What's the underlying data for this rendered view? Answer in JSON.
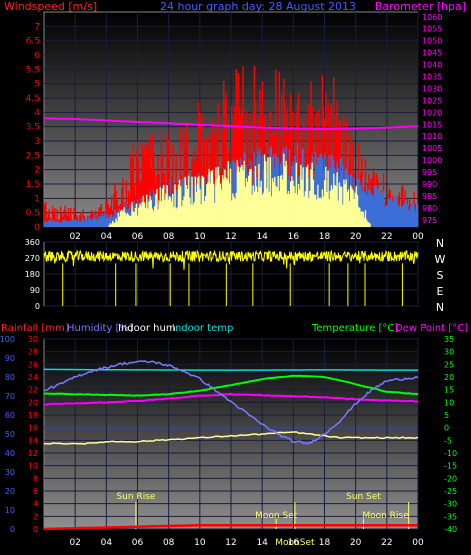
{
  "colors": {
    "wind": "#ff0000",
    "gust": "#ff0000",
    "windavg": "#3a6fd8",
    "baro": "#ff00ff",
    "dir": "#ffff00",
    "rain": "#ff0000",
    "humidity": "#7a7aff",
    "indoor_hum": "#ffff99",
    "indoor_temp": "#00e0e0",
    "temperature": "#00ff00",
    "dewpoint": "#ff00ff",
    "sun": "#ffff66",
    "axis_temp": "#00ff00",
    "axis_baro": "#ff00ff",
    "axis_wind": "#ff0000",
    "axis_left": "#4060ff",
    "axis_rain": "#ff0000",
    "axis_dir": "#ffffff"
  },
  "chart_data": [
    {
      "type": "bar",
      "panel": "wind_barometer",
      "title": "24 hour graph day: 28 August 2013",
      "left_axis_label": "Windspeed [m/s]",
      "right_axis_label": "Barometer [hpa]",
      "y_left_ticks": [
        "0",
        "0.5",
        "1",
        "1.5",
        "2",
        "2.5",
        "3",
        "3.5",
        "4",
        "4.5",
        "5",
        "5.5",
        "6",
        "6.5",
        "7"
      ],
      "y_right_ticks": [
        "975",
        "980",
        "985",
        "990",
        "995",
        "1000",
        "1005",
        "1010",
        "1015",
        "1020",
        "1025",
        "1030",
        "1035",
        "1040",
        "1045",
        "1050",
        "1055",
        "1060"
      ],
      "x_ticks": [
        "02",
        "04",
        "06",
        "08",
        "10",
        "12",
        "14",
        "16",
        "18",
        "20",
        "22",
        "00"
      ],
      "ylim_left": [
        0,
        7.5
      ],
      "ylim_right": [
        972,
        1062
      ],
      "hour_range": [
        0,
        24
      ],
      "gust_profile": {
        "hour": [
          0,
          1,
          2,
          3,
          4,
          5,
          6,
          7,
          8,
          9,
          10,
          11,
          12,
          13,
          14,
          15,
          16,
          17,
          18,
          19,
          20,
          21,
          22,
          23,
          24
        ],
        "value": [
          0.8,
          0.6,
          0.5,
          0.5,
          0.8,
          1.5,
          2.5,
          2.6,
          2.8,
          3.0,
          3.4,
          3.6,
          4.2,
          5.2,
          4.8,
          4.5,
          4.2,
          4.0,
          4.6,
          3.6,
          2.6,
          1.6,
          1.4,
          1.2,
          1.2
        ]
      },
      "avg_profile": {
        "hour": [
          0,
          2,
          4,
          6,
          8,
          10,
          12,
          14,
          16,
          18,
          20,
          22,
          24
        ],
        "value": [
          0.2,
          0.2,
          0.4,
          0.8,
          1.3,
          1.5,
          1.9,
          2.2,
          2.3,
          2.1,
          1.6,
          0.9,
          0.7
        ]
      },
      "base_profile": {
        "hour": [
          0,
          4,
          5,
          6,
          8,
          10,
          12,
          14,
          16,
          18,
          20,
          21,
          22,
          24
        ],
        "value": [
          0,
          0,
          0.5,
          0.8,
          1.2,
          1.5,
          1.8,
          2.0,
          2.0,
          1.7,
          1.2,
          0,
          0,
          0
        ]
      },
      "barometer": {
        "hour": [
          0,
          2,
          4,
          6,
          8,
          10,
          12,
          14,
          16,
          18,
          20,
          22,
          24
        ],
        "value": [
          1017.5,
          1017.2,
          1016.6,
          1016.0,
          1015.4,
          1014.8,
          1014.2,
          1013.6,
          1013.2,
          1013.0,
          1013.2,
          1013.6,
          1014.2
        ]
      }
    },
    {
      "type": "line",
      "panel": "wind_direction",
      "right_labels": [
        "N",
        "W",
        "S",
        "E",
        "N"
      ],
      "y_ticks": [
        "0",
        "90",
        "180",
        "270",
        "360"
      ],
      "ylim": [
        0,
        360
      ],
      "mean_direction": 280,
      "spread": 30,
      "drops_hours": [
        1.2,
        4.6,
        5.9,
        8.1,
        9.3,
        11.7,
        13.4,
        15.8,
        18.3,
        19.5,
        20.6,
        23.0
      ]
    },
    {
      "type": "line",
      "panel": "temperature_humidity",
      "label_rain": "Rainfall [mm]",
      "label_humidity": "Humidity [%]",
      "label_indoor_hum": "Indoor hum",
      "label_indoor_temp": "Indoor temp",
      "label_temperature": "Temperature [°C]",
      "label_dewpoint": "Dew Point [°C]",
      "humidity_ticks": [
        "0",
        "10",
        "20",
        "30",
        "40",
        "50",
        "60",
        "70",
        "80",
        "90",
        "100"
      ],
      "rain_ticks": [
        "0",
        "2",
        "4",
        "6",
        "8",
        "10",
        "12",
        "14",
        "16",
        "18",
        "20",
        "22",
        "24",
        "26",
        "28",
        "30"
      ],
      "temp_ticks": [
        "-40",
        "-35",
        "-30",
        "-25",
        "-20",
        "-15",
        "-10",
        "-5",
        "0",
        "5",
        "10",
        "15",
        "20",
        "25",
        "30",
        "35"
      ],
      "x_ticks": [
        "02",
        "04",
        "06",
        "08",
        "10",
        "12",
        "14",
        "16",
        "18",
        "20",
        "22",
        "00"
      ],
      "ylim_humidity": [
        0,
        100
      ],
      "ylim_temp": [
        -40,
        35
      ],
      "humidity": {
        "hour": [
          0,
          1,
          2,
          3,
          4,
          5,
          6,
          7,
          8,
          9,
          10,
          11,
          12,
          13,
          14,
          15,
          16,
          17,
          18,
          19,
          20,
          21,
          22,
          23,
          24
        ],
        "value": [
          73,
          76,
          80,
          83,
          85,
          87,
          88,
          88,
          86,
          83,
          79,
          73,
          67,
          61,
          55,
          50,
          46,
          45,
          50,
          57,
          66,
          73,
          78,
          79,
          80
        ]
      },
      "indoor_humidity": {
        "hour": [
          0,
          3,
          4,
          6,
          8,
          10,
          12,
          14,
          16,
          18,
          19,
          24
        ],
        "value": [
          45,
          45,
          46,
          46,
          47,
          48,
          49,
          50,
          51,
          49,
          48,
          48
        ]
      },
      "indoor_temp": {
        "hour": [
          0,
          6,
          12,
          18,
          24
        ],
        "value": [
          23.0,
          22.8,
          22.7,
          22.8,
          22.7
        ]
      },
      "temperature": {
        "hour": [
          0,
          2,
          4,
          6,
          8,
          10,
          12,
          14,
          16,
          18,
          20,
          22,
          24
        ],
        "value": [
          13.5,
          13.2,
          12.9,
          12.7,
          13.2,
          14.6,
          16.8,
          19.2,
          20.5,
          20.0,
          17.2,
          14.2,
          13.2
        ]
      },
      "dewpoint": {
        "hour": [
          0,
          2,
          4,
          6,
          8,
          10,
          12,
          14,
          16,
          18,
          20,
          22,
          24
        ],
        "value": [
          9.2,
          9.6,
          10.0,
          10.5,
          11.5,
          12.6,
          13.2,
          12.8,
          12.4,
          12.0,
          11.2,
          10.7,
          10.4
        ]
      },
      "rain_total": {
        "hour": [
          0,
          10,
          24
        ],
        "value": [
          0,
          0.6,
          0.6
        ]
      },
      "events": [
        {
          "label": "Sun Rise",
          "hour": 5.9
        },
        {
          "label": "Moon Set",
          "hour": 14.9
        },
        {
          "label": "MoonSet",
          "hour": 16.1
        },
        {
          "label": "Sun Set",
          "hour": 20.5
        },
        {
          "label": "Moon Rise",
          "hour": 23.4
        }
      ]
    }
  ]
}
